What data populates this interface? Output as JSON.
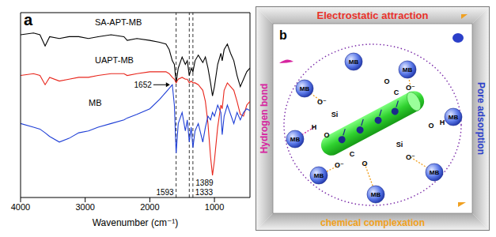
{
  "chart_data": {
    "type": "line",
    "panel_label": "a",
    "xlabel": "Wavenumber (cm⁻¹)",
    "x": [
      4000,
      3800,
      3700,
      3620,
      3550,
      3400,
      3250,
      3100,
      2950,
      2800,
      2600,
      2400,
      2350,
      2200,
      2000,
      1850,
      1750,
      1700,
      1652,
      1620,
      1593,
      1560,
      1500,
      1450,
      1420,
      1389,
      1360,
      1333,
      1300,
      1250,
      1180,
      1140,
      1100,
      1060,
      1030,
      1000,
      950,
      900,
      880,
      850,
      800,
      750,
      700,
      650,
      600,
      550,
      500,
      450
    ],
    "xlim": [
      4000,
      450
    ],
    "xticks": [
      4000,
      3000,
      2000,
      1000
    ],
    "ylim": [
      0,
      100
    ],
    "tick_labels": "x",
    "series": [
      {
        "name": "SA-APT-MB",
        "color": "#000000",
        "values": [
          88,
          89,
          88,
          82,
          87,
          86,
          87,
          87,
          86,
          87,
          88,
          87,
          85,
          86,
          85,
          84,
          83,
          80,
          74,
          72,
          62,
          70,
          76,
          72,
          74,
          66,
          70,
          68,
          74,
          77,
          73,
          76,
          70,
          62,
          55,
          60,
          72,
          78,
          74,
          80,
          83,
          78,
          74,
          66,
          60,
          64,
          68,
          70
        ]
      },
      {
        "name": "UAPT-MB",
        "color": "#e8261c",
        "values": [
          66,
          67,
          66,
          61,
          65,
          63,
          64,
          65,
          65,
          66,
          67,
          67,
          66,
          67,
          68,
          68,
          68,
          67,
          65,
          64,
          62,
          64,
          65,
          64,
          64,
          62,
          63,
          62,
          62,
          61,
          58,
          52,
          40,
          22,
          12,
          20,
          38,
          50,
          48,
          58,
          62,
          60,
          58,
          52,
          45,
          44,
          50,
          52
        ]
      },
      {
        "name": "MB",
        "color": "#1f3fd6",
        "values": [
          40,
          38,
          37,
          35,
          33,
          30,
          32,
          35,
          36,
          38,
          40,
          42,
          43,
          45,
          48,
          53,
          57,
          59,
          61,
          50,
          24,
          40,
          46,
          36,
          42,
          30,
          38,
          27,
          36,
          40,
          30,
          38,
          44,
          42,
          46,
          44,
          50,
          46,
          34,
          44,
          50,
          45,
          40,
          46,
          42,
          46,
          48,
          47
        ]
      }
    ],
    "reference_lines": [
      1593,
      1389,
      1333
    ],
    "arrow_marks": [
      {
        "x": 1652,
        "series": "MB"
      }
    ]
  },
  "diagram": {
    "panel_label": "b",
    "sides": [
      {
        "position": "top",
        "text": "Electrostatic attraction",
        "color": "#e8312b"
      },
      {
        "position": "left",
        "text": "Hydrogen bond",
        "color": "#d6249f"
      },
      {
        "position": "right",
        "text": "Pore adsorption",
        "color": "#2b3fc9"
      },
      {
        "position": "bottom",
        "text": "chemical complexation",
        "color": "#f0a020"
      }
    ],
    "molecules": [
      "MB",
      "MB",
      "MB",
      "MB",
      "MB",
      "MB",
      "MB",
      "MB"
    ],
    "groups": [
      "O",
      "C",
      "O⁻",
      "O⁻",
      "Si",
      "H",
      "O",
      "O",
      "H",
      "Si",
      "O⁻",
      "O⁻",
      "C",
      "O"
    ]
  }
}
